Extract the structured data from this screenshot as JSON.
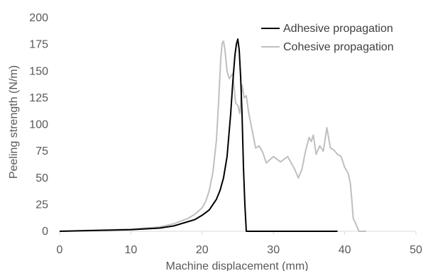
{
  "chart_data": {
    "type": "line",
    "xlabel": "Machine displacement (mm)",
    "ylabel": "Peeling strength (N/m)",
    "xlim": [
      0,
      50
    ],
    "ylim": [
      0,
      200
    ],
    "x_ticks": [
      0,
      10,
      20,
      30,
      40,
      50
    ],
    "y_ticks": [
      0,
      25,
      50,
      75,
      100,
      125,
      150,
      175,
      200
    ],
    "grid": false,
    "legend_position": "top-right",
    "colors": {
      "axis": "#d9d9d9",
      "text": "#595959"
    },
    "series": [
      {
        "name": "Adhesive propagation",
        "color": "#000000",
        "x": [
          0,
          10,
          14,
          16,
          18,
          19,
          20,
          21,
          22,
          22.5,
          23,
          23.5,
          24,
          24.3,
          24.6,
          24.8,
          25,
          25.2,
          25.4,
          25.6,
          25.8,
          26,
          26.2,
          27,
          30,
          35,
          39
        ],
        "y": [
          0,
          1.5,
          3,
          5,
          9,
          11,
          15,
          20,
          30,
          38,
          50,
          70,
          110,
          140,
          165,
          175,
          180,
          170,
          145,
          110,
          60,
          25,
          0,
          0,
          0,
          0,
          0
        ]
      },
      {
        "name": "Cohesive propagation",
        "color": "#bfbfbf",
        "x": [
          0,
          10,
          14,
          16,
          18,
          19,
          20,
          20.5,
          21,
          21.5,
          22,
          22.3,
          22.6,
          22.8,
          23,
          23.2,
          23.5,
          23.8,
          24,
          24.3,
          24.7,
          25,
          25.3,
          25.6,
          25.9,
          26.2,
          26.5,
          27,
          27.5,
          28,
          28.5,
          29,
          30,
          31,
          32,
          33,
          33.5,
          34,
          34.5,
          35,
          35.3,
          35.6,
          36,
          36.5,
          37,
          37.5,
          38,
          38.5,
          39,
          39.5,
          40,
          40.5,
          40.8,
          41,
          41.2,
          41.5,
          42,
          43
        ],
        "y": [
          0,
          2,
          4,
          7,
          12,
          16,
          22,
          28,
          38,
          55,
          85,
          120,
          160,
          176,
          178,
          170,
          150,
          143,
          145,
          148,
          120,
          118,
          110,
          137,
          125,
          127,
          112,
          95,
          78,
          80,
          74,
          64,
          70,
          65,
          70,
          58,
          50,
          58,
          75,
          88,
          84,
          90,
          72,
          80,
          75,
          97,
          78,
          76,
          72,
          70,
          60,
          54,
          45,
          30,
          12,
          8,
          0,
          0
        ]
      }
    ]
  }
}
